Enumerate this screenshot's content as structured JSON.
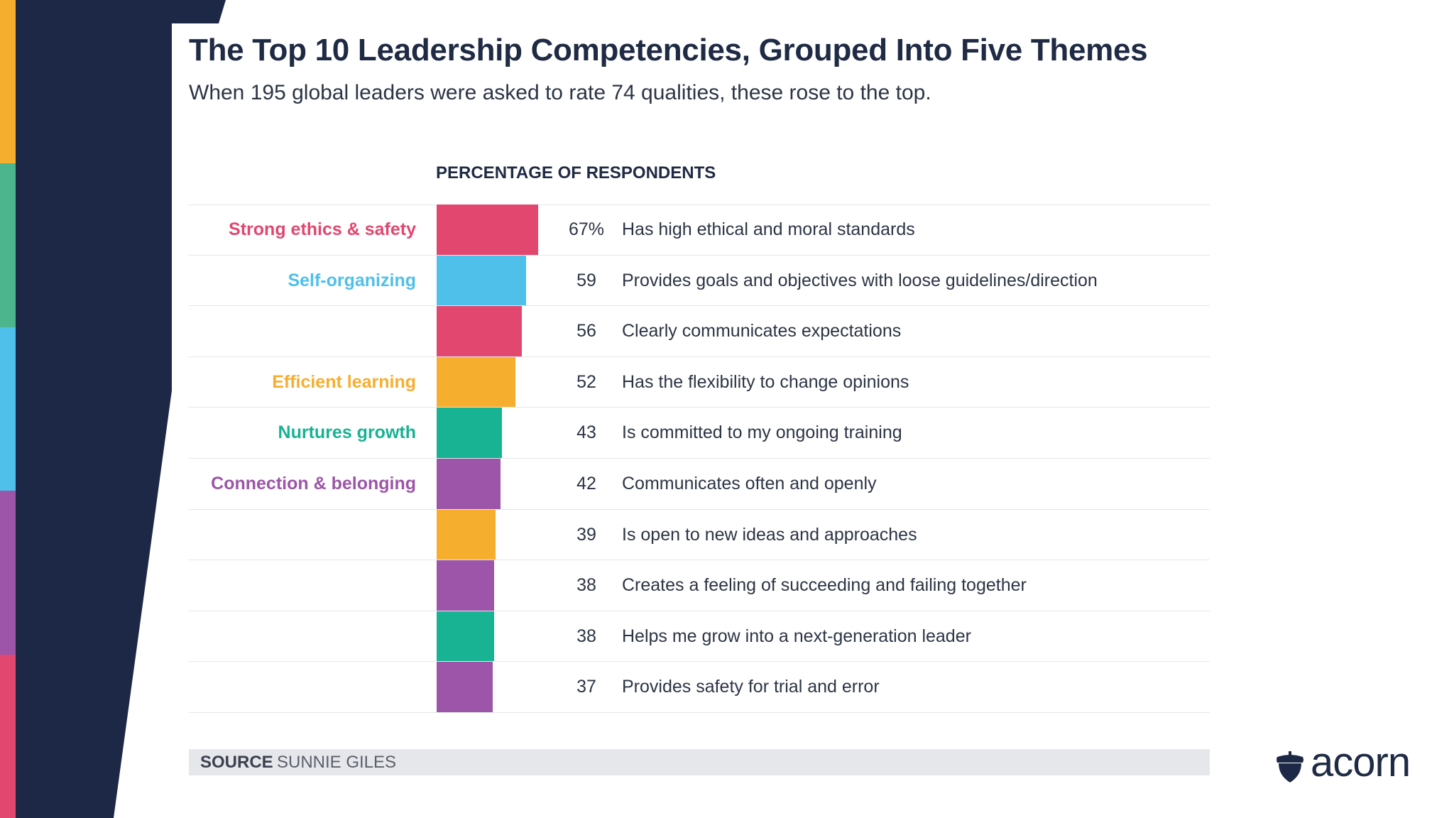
{
  "title": "The Top 10 Leadership Competencies, Grouped Into Five Themes",
  "subtitle": "When 195 global leaders were asked to rate 74 qualities, these rose to the top.",
  "column_header": "PERCENTAGE OF RESPONDENTS",
  "source": {
    "label": "SOURCE",
    "value": "SUNNIE GILES"
  },
  "brand": {
    "name": "acorn",
    "icon": "acorn-icon"
  },
  "colors": {
    "ethics": "#e2476f",
    "self_org": "#4fc0ea",
    "learning": "#f6ae2f",
    "growth": "#17b393",
    "connection": "#9c55a8",
    "navy": "#1c2846",
    "text": "#2c3445"
  },
  "side_stripes": [
    "#f6ae2f",
    "#4db58e",
    "#4fc0ea",
    "#9c55a8",
    "#e2476f"
  ],
  "chart_data": {
    "type": "bar",
    "orientation": "horizontal",
    "title": "The Top 10 Leadership Competencies, Grouped Into Five Themes",
    "subtitle": "When 195 global leaders were asked to rate 74 qualities, these rose to the top.",
    "xlabel": "PERCENTAGE OF RESPONDENTS",
    "ylabel": "",
    "xlim": [
      0,
      100
    ],
    "unit": "%",
    "grid": false,
    "themes": [
      {
        "name": "Strong ethics & safety",
        "color": "#e2476f"
      },
      {
        "name": "Self-organizing",
        "color": "#4fc0ea"
      },
      {
        "name": "Efficient learning",
        "color": "#f6ae2f"
      },
      {
        "name": "Nurtures growth",
        "color": "#17b393"
      },
      {
        "name": "Connection & belonging",
        "color": "#9c55a8"
      }
    ],
    "rows": [
      {
        "theme_label": "Strong ethics & safety",
        "theme": "Strong ethics & safety",
        "value": 67,
        "value_label": "67%",
        "label": "Has high ethical and moral standards"
      },
      {
        "theme_label": "Self-organizing",
        "theme": "Self-organizing",
        "value": 59,
        "value_label": "59",
        "label": "Provides goals and objectives with loose guidelines/direction"
      },
      {
        "theme_label": "",
        "theme": "Strong ethics & safety",
        "value": 56,
        "value_label": "56",
        "label": "Clearly communicates expectations"
      },
      {
        "theme_label": "Efficient learning",
        "theme": "Efficient learning",
        "value": 52,
        "value_label": "52",
        "label": "Has the flexibility to change opinions"
      },
      {
        "theme_label": "Nurtures growth",
        "theme": "Nurtures growth",
        "value": 43,
        "value_label": "43",
        "label": "Is committed to my ongoing training"
      },
      {
        "theme_label": "Connection & belonging",
        "theme": "Connection & belonging",
        "value": 42,
        "value_label": "42",
        "label": "Communicates often and openly"
      },
      {
        "theme_label": "",
        "theme": "Efficient learning",
        "value": 39,
        "value_label": "39",
        "label": "Is open to new ideas and approaches"
      },
      {
        "theme_label": "",
        "theme": "Connection & belonging",
        "value": 38,
        "value_label": "38",
        "label": "Creates a feeling of succeeding and failing together"
      },
      {
        "theme_label": "",
        "theme": "Nurtures growth",
        "value": 38,
        "value_label": "38",
        "label": "Helps me grow into a next-generation leader"
      },
      {
        "theme_label": "",
        "theme": "Connection & belonging",
        "value": 37,
        "value_label": "37",
        "label": "Provides safety for trial and error"
      }
    ]
  }
}
